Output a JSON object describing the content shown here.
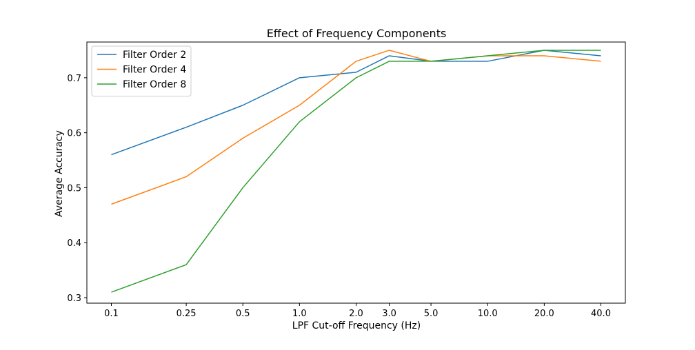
{
  "chart_data": {
    "type": "line",
    "title": "Effect of Frequency Components",
    "xlabel": "LPF Cut-off Frequency (Hz)",
    "ylabel": "Average Accuracy",
    "x_scale": "log",
    "categories": [
      "0.1",
      "0.25",
      "0.5",
      "1.0",
      "2.0",
      "3.0",
      "5.0",
      "10.0",
      "20.0",
      "40.0"
    ],
    "x": [
      0.1,
      0.25,
      0.5,
      1.0,
      2.0,
      3.0,
      5.0,
      10.0,
      20.0,
      40.0
    ],
    "yticks": [
      "0.3",
      "0.4",
      "0.5",
      "0.6",
      "0.7"
    ],
    "ylim": [
      0.29,
      0.765
    ],
    "grid": false,
    "legend_position": "upper-left",
    "series": [
      {
        "name": "Filter Order 2",
        "color": "#1f77b4",
        "values": [
          0.56,
          0.61,
          0.65,
          0.7,
          0.71,
          0.74,
          0.73,
          0.73,
          0.75,
          0.74
        ]
      },
      {
        "name": "Filter Order 4",
        "color": "#ff7f0e",
        "values": [
          0.47,
          0.52,
          0.59,
          0.65,
          0.73,
          0.75,
          0.73,
          0.74,
          0.74,
          0.73
        ]
      },
      {
        "name": "Filter Order 8",
        "color": "#2ca02c",
        "values": [
          0.31,
          0.36,
          0.5,
          0.62,
          0.7,
          0.73,
          0.73,
          0.74,
          0.75,
          0.75
        ]
      }
    ]
  }
}
